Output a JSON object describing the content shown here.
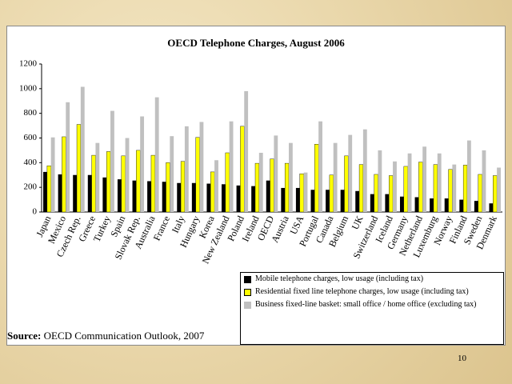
{
  "chart_data": {
    "type": "bar",
    "title": "OECD Telephone Charges,  August 2006",
    "categories": [
      "Japan",
      "Mexico",
      "Czech Rep.",
      "Greece",
      "Turkey",
      "Spain",
      "Slovak Rep.",
      "Australia",
      "France",
      "Italy",
      "Hungary",
      "Korea",
      "New Zealand",
      "Poland",
      "Ireland",
      "OECD",
      "Austria",
      "USA",
      "Portugal",
      "Canada",
      "Belgium",
      "UK",
      "Switzerland",
      "Iceland",
      "Germany",
      "Netherland",
      "Luxemburg",
      "Norway",
      "Finland",
      "Sweden",
      "Denmark"
    ],
    "series": [
      {
        "name": "Mobile telephone charges, low usage (including tax)",
        "color": "#000000",
        "values": [
          325,
          305,
          300,
          300,
          280,
          265,
          255,
          250,
          245,
          235,
          235,
          230,
          225,
          215,
          210,
          255,
          195,
          195,
          180,
          180,
          180,
          170,
          145,
          145,
          125,
          120,
          110,
          110,
          100,
          90,
          70
        ]
      },
      {
        "name": "Residential fixed line telephone charges, low usage (including tax)",
        "color": "#ffff00",
        "values": [
          375,
          610,
          710,
          460,
          490,
          455,
          500,
          460,
          400,
          410,
          605,
          325,
          480,
          695,
          395,
          430,
          395,
          310,
          550,
          300,
          455,
          385,
          305,
          295,
          370,
          405,
          385,
          345,
          380,
          305,
          295
        ]
      },
      {
        "name": "Business fixed-line basket: small office / home office (excluding tax)",
        "color": "#c0c0c0",
        "values": [
          605,
          890,
          1015,
          560,
          820,
          600,
          775,
          930,
          615,
          695,
          730,
          420,
          735,
          980,
          480,
          620,
          560,
          320,
          735,
          560,
          625,
          670,
          500,
          410,
          475,
          530,
          475,
          385,
          580,
          500,
          360
        ]
      }
    ],
    "ylim": [
      0,
      1200
    ],
    "yticks": [
      0,
      200,
      400,
      600,
      800,
      1000,
      1200
    ],
    "grid": false,
    "legend": "bottom-right"
  },
  "source": {
    "label": "Source:",
    "text": "OECD Communication Outlook, 2007"
  },
  "page_number": "10"
}
